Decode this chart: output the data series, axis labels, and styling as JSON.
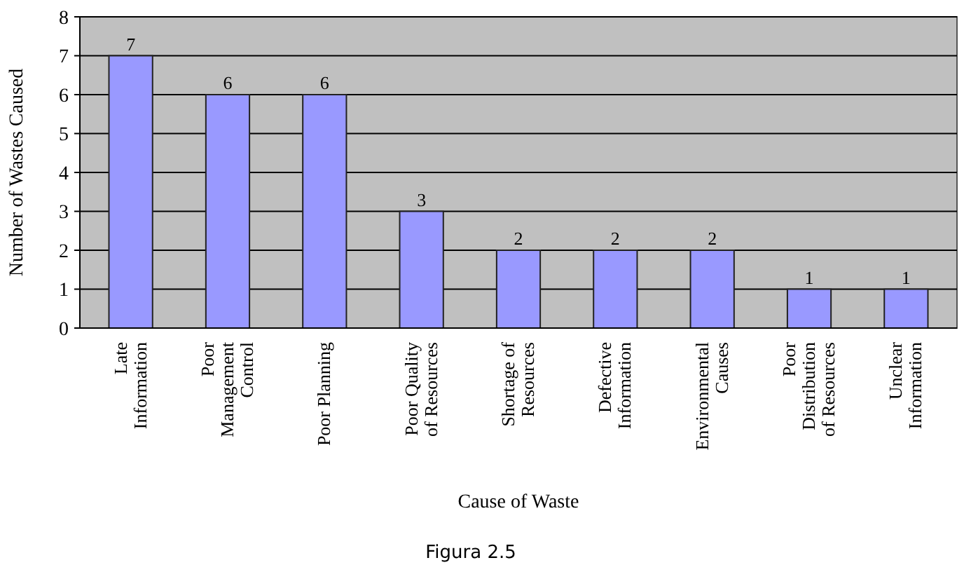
{
  "chart_data": {
    "type": "bar",
    "xlabel": "Cause of Waste",
    "ylabel": "Number of Wastes Caused",
    "categories": [
      "Late Information",
      "Poor Management Control",
      "Poor Planning",
      "Poor Quality of Resources",
      "Shortage of Resources",
      "Defective Information",
      "Environmental Causes",
      "Poor Distribution of Resources",
      "Unclear Information"
    ],
    "values": [
      7,
      6,
      6,
      3,
      2,
      2,
      2,
      1,
      1
    ],
    "color": "#9999ff",
    "ylim": [
      0,
      8
    ],
    "yticks": [
      0,
      1,
      2,
      3,
      4,
      5,
      6,
      7,
      8
    ],
    "grid": "y",
    "data_labels": true,
    "annotations": [
      "Figura 2.5"
    ]
  }
}
